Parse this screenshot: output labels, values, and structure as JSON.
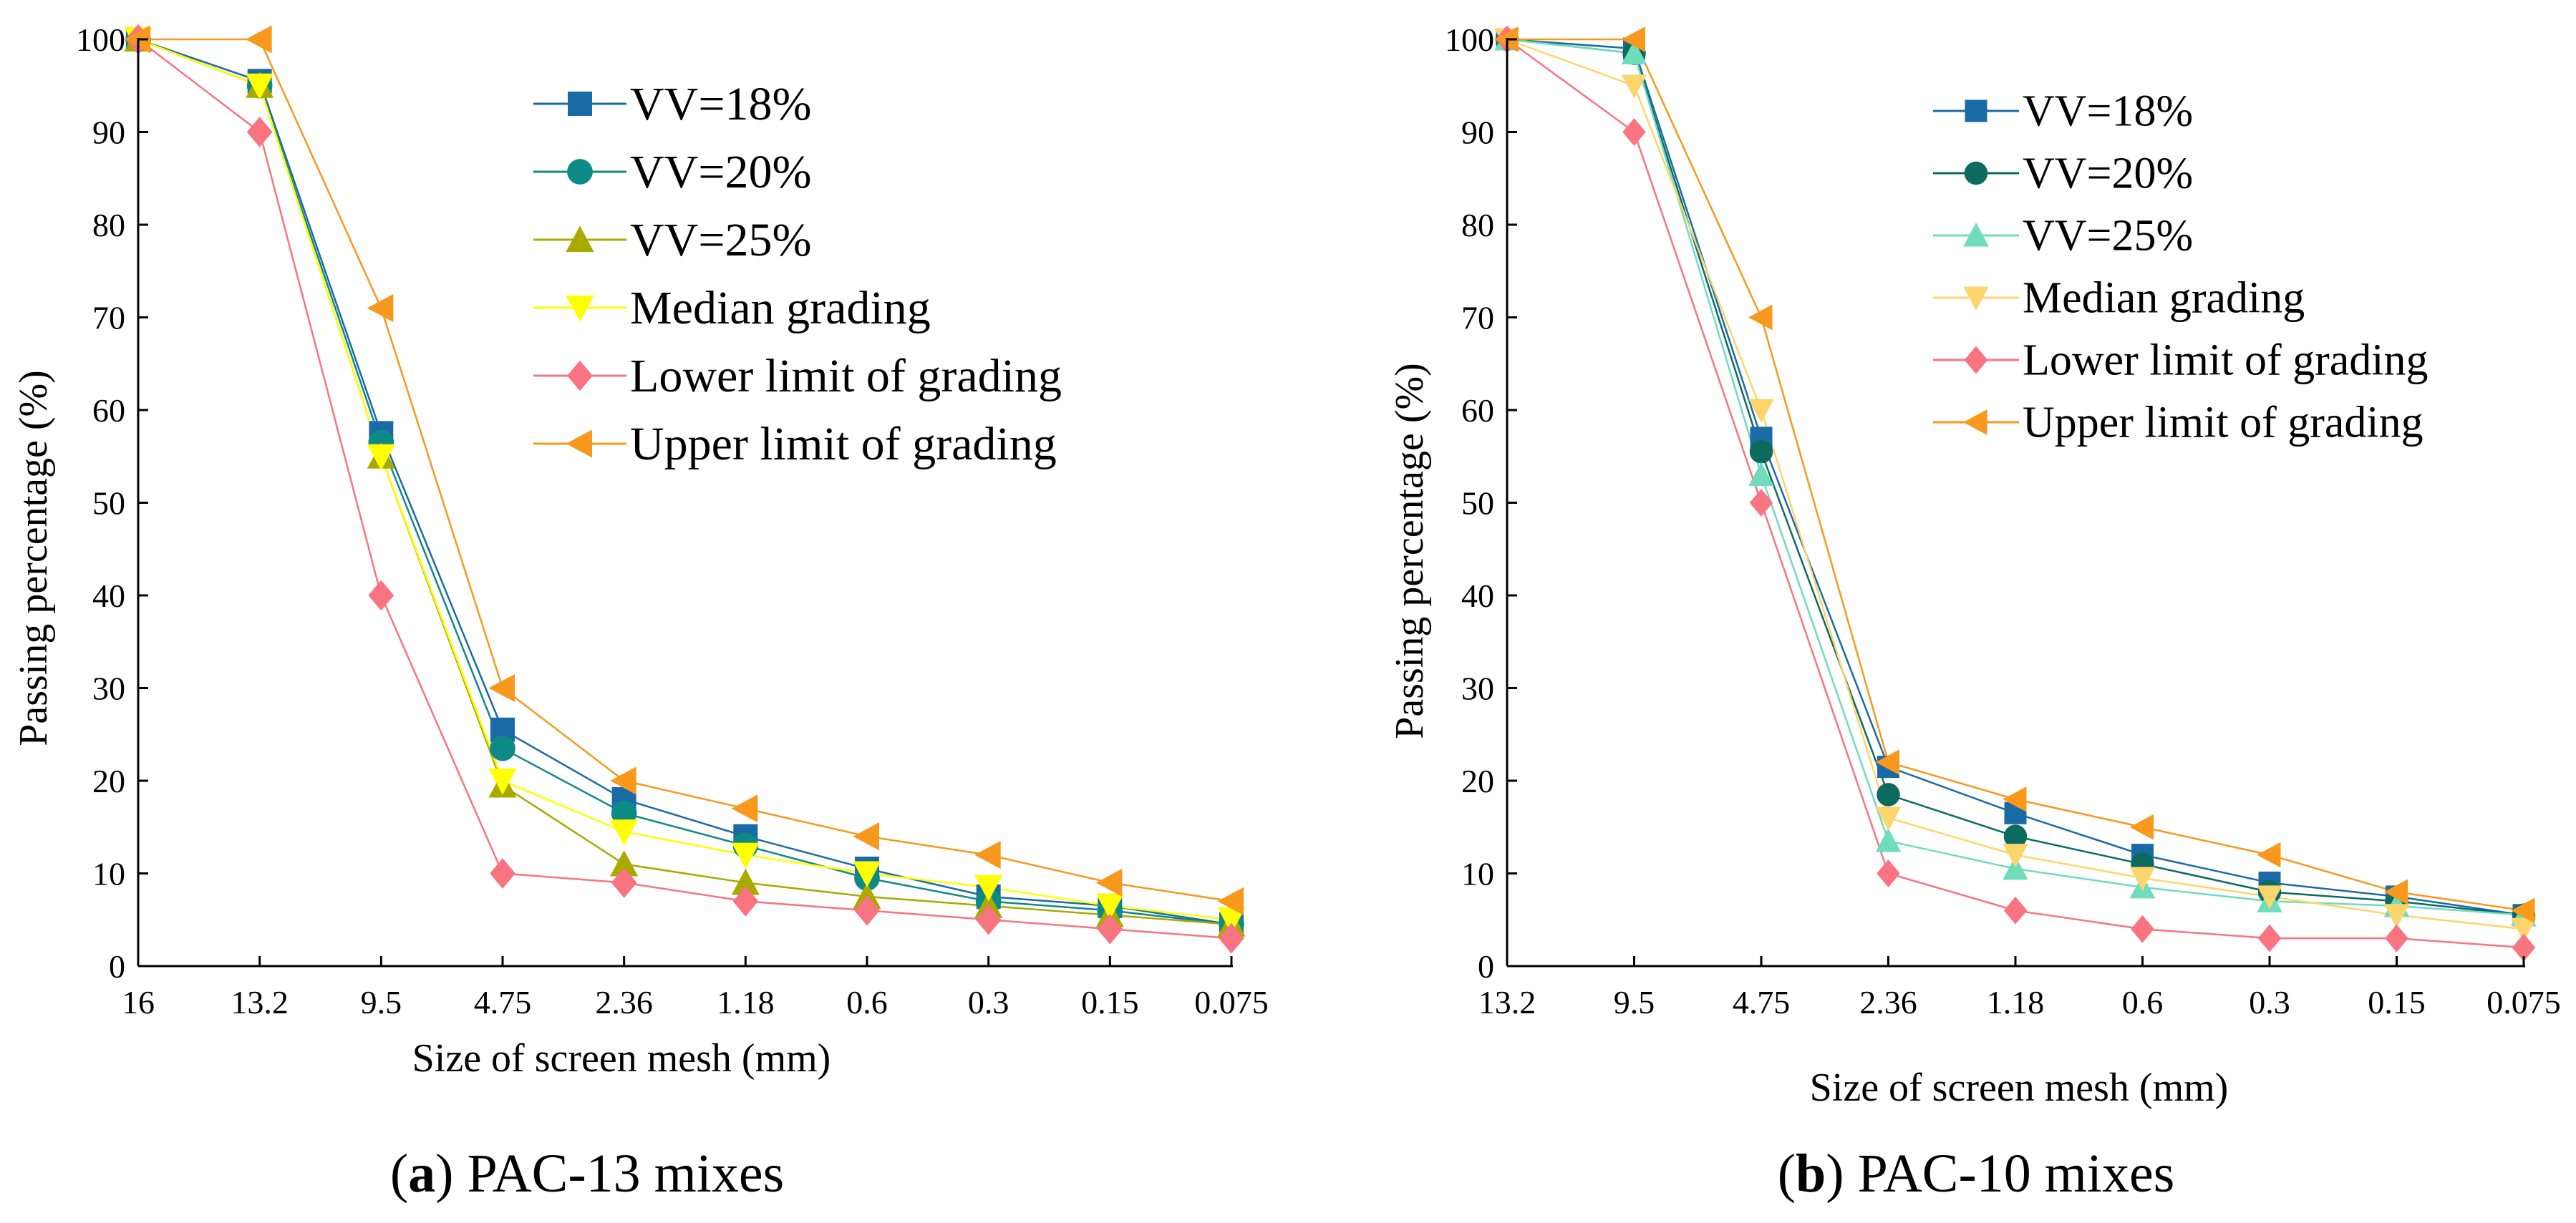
{
  "chart_data": [
    {
      "id": "a",
      "type": "line",
      "caption_label": "a",
      "caption_text": " PAC-13 mixes",
      "xlabel": "Size of screen mesh (mm)",
      "ylabel": "Passing percentage (%)",
      "ylim": [
        0,
        100
      ],
      "yticks": [
        0,
        10,
        20,
        30,
        40,
        50,
        60,
        70,
        80,
        90,
        100
      ],
      "categories": [
        "16",
        "13.2",
        "9.5",
        "4.75",
        "2.36",
        "1.18",
        "0.6",
        "0.3",
        "0.15",
        "0.075"
      ],
      "legend_position": "top-right",
      "series": [
        {
          "name": "VV=18%",
          "marker": "square",
          "color": "#1a6aa6",
          "values": [
            100,
            95.5,
            57.5,
            25.5,
            18,
            14,
            10.5,
            7.5,
            6.5,
            4.5
          ]
        },
        {
          "name": "VV=20%",
          "marker": "circle",
          "color": "#0e8a86",
          "values": [
            100,
            95,
            56.5,
            23.5,
            16.5,
            13,
            9.5,
            7,
            6,
            4.5
          ]
        },
        {
          "name": "VV=25%",
          "marker": "triangle-up",
          "color": "#a9a900",
          "values": [
            100,
            95,
            55,
            19.5,
            11,
            9,
            7.5,
            6.5,
            5.5,
            4.5
          ]
        },
        {
          "name": "Median grading",
          "marker": "triangle-down",
          "color": "#ffff00",
          "values": [
            100,
            95,
            55,
            20,
            14.5,
            12,
            10,
            8.5,
            6.5,
            5
          ]
        },
        {
          "name": "Lower limit of grading",
          "marker": "diamond",
          "color": "#f87480",
          "values": [
            100,
            90,
            40,
            10,
            9,
            7,
            6,
            5,
            4,
            3
          ]
        },
        {
          "name": "Upper limit of grading",
          "marker": "triangle-left",
          "color": "#f8981c",
          "values": [
            100,
            100,
            71,
            30,
            20,
            17,
            14,
            12,
            9,
            7
          ]
        }
      ]
    },
    {
      "id": "b",
      "type": "line",
      "caption_label": "b",
      "caption_text": " PAC-10 mixes",
      "xlabel": "Size of screen mesh (mm)",
      "ylabel": "Passing percentage (%)",
      "ylim": [
        0,
        100
      ],
      "yticks": [
        0,
        10,
        20,
        30,
        40,
        50,
        60,
        70,
        80,
        90,
        100
      ],
      "categories": [
        "13.2",
        "9.5",
        "4.75",
        "2.36",
        "1.18",
        "0.6",
        "0.3",
        "0.15",
        "0.075"
      ],
      "legend_position": "top-right",
      "series": [
        {
          "name": "VV=18%",
          "marker": "square",
          "color": "#1a6aa6",
          "values": [
            100,
            99,
            57,
            21.5,
            16.5,
            12,
            9,
            7.5,
            5.5
          ]
        },
        {
          "name": "VV=20%",
          "marker": "circle",
          "color": "#0d6a5f",
          "values": [
            100,
            98.5,
            55.5,
            18.5,
            14,
            11,
            8,
            7,
            5.5
          ]
        },
        {
          "name": "VV=25%",
          "marker": "triangle-up",
          "color": "#6fdcbc",
          "values": [
            100,
            98.5,
            53,
            13.5,
            10.5,
            8.5,
            7,
            6.5,
            5.5
          ]
        },
        {
          "name": "Median grading",
          "marker": "triangle-down",
          "color": "#fcd56c",
          "values": [
            100,
            95,
            60,
            16,
            12,
            9.5,
            7.5,
            5.5,
            4
          ]
        },
        {
          "name": "Lower limit of grading",
          "marker": "diamond",
          "color": "#f87480",
          "values": [
            100,
            90,
            50,
            10,
            6,
            4,
            3,
            3,
            2
          ]
        },
        {
          "name": "Upper limit of grading",
          "marker": "triangle-left",
          "color": "#f8981c",
          "values": [
            100,
            100,
            70,
            22,
            18,
            15,
            12,
            8,
            6
          ]
        }
      ]
    }
  ]
}
